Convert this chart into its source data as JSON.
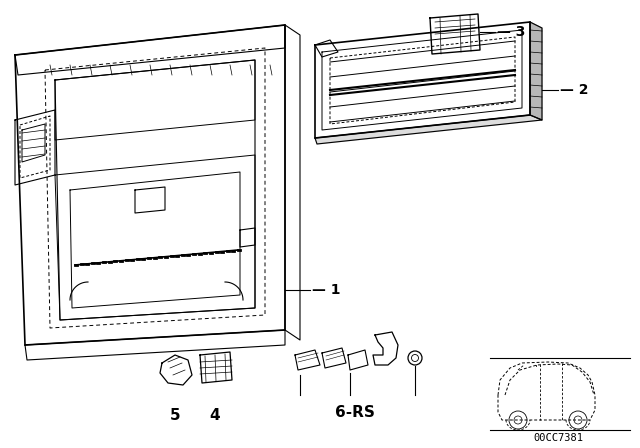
{
  "bg_color": "#ffffff",
  "line_color": "#000000",
  "code": "00CC7381",
  "label_fontsize": 10,
  "code_fontsize": 7.5,
  "parts_fontsize": 11
}
